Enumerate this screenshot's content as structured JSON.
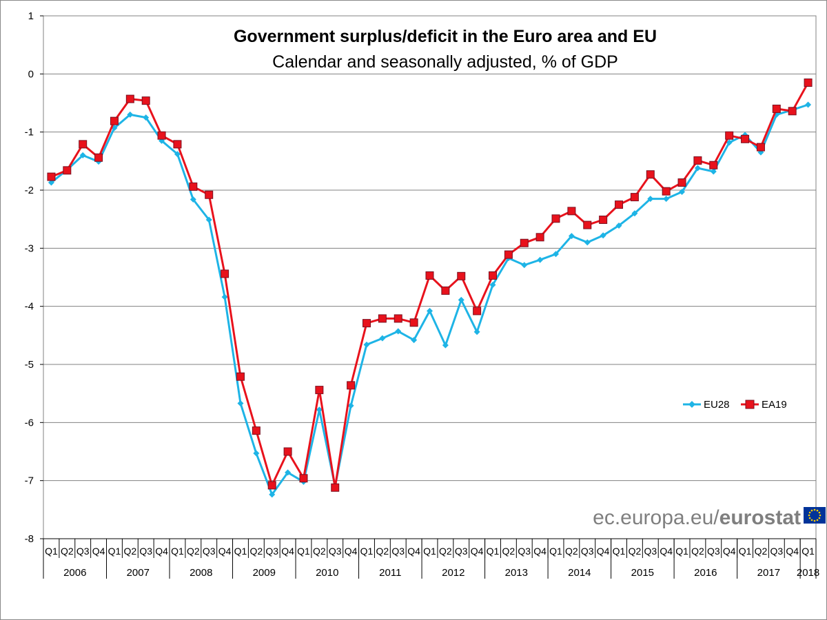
{
  "chart_data": {
    "type": "line",
    "title": "Government surplus/deficit in the Euro area and EU",
    "subtitle": "Calendar and seasonally adjusted, % of GDP",
    "ylim": [
      -8,
      1
    ],
    "yticks": [
      "1",
      "0",
      "-1",
      "-2",
      "-3",
      "-4",
      "-5",
      "-6",
      "-7",
      "-8"
    ],
    "grid": true,
    "legend_position": "right",
    "quarters": [
      "Q1",
      "Q2",
      "Q3",
      "Q4",
      "Q1",
      "Q2",
      "Q3",
      "Q4",
      "Q1",
      "Q2",
      "Q3",
      "Q4",
      "Q1",
      "Q2",
      "Q3",
      "Q4",
      "Q1",
      "Q2",
      "Q3",
      "Q4",
      "Q1",
      "Q2",
      "Q3",
      "Q4",
      "Q1",
      "Q2",
      "Q3",
      "Q4",
      "Q1",
      "Q2",
      "Q3",
      "Q4",
      "Q1",
      "Q2",
      "Q3",
      "Q4",
      "Q1",
      "Q2",
      "Q3",
      "Q4",
      "Q1",
      "Q2",
      "Q3",
      "Q4",
      "Q1",
      "Q2",
      "Q3",
      "Q4",
      "Q1"
    ],
    "years": [
      "2006",
      "2007",
      "2008",
      "2009",
      "2010",
      "2011",
      "2012",
      "2013",
      "2014",
      "2015",
      "2016",
      "2017",
      "2018"
    ],
    "series": [
      {
        "name": "EU28",
        "color": "#1eb4e6",
        "marker": "diamond",
        "values": [
          -1.87,
          -1.65,
          -1.4,
          -1.51,
          -0.93,
          -0.7,
          -0.75,
          -1.15,
          -1.38,
          -2.16,
          -2.51,
          -3.84,
          -5.67,
          -6.53,
          -7.24,
          -6.86,
          -7.02,
          -5.78,
          -7.1,
          -5.71,
          -4.66,
          -4.55,
          -4.43,
          -4.58,
          -4.08,
          -4.67,
          -3.89,
          -4.44,
          -3.63,
          -3.17,
          -3.29,
          -3.2,
          -3.1,
          -2.79,
          -2.9,
          -2.78,
          -2.61,
          -2.4,
          -2.15,
          -2.15,
          -2.03,
          -1.62,
          -1.68,
          -1.18,
          -1.05,
          -1.35,
          -0.7,
          -0.62,
          -0.53
        ]
      },
      {
        "name": "EA19",
        "color": "#e8121c",
        "marker": "square",
        "values": [
          -1.77,
          -1.66,
          -1.21,
          -1.44,
          -0.81,
          -0.43,
          -0.46,
          -1.06,
          -1.21,
          -1.94,
          -2.08,
          -3.44,
          -5.21,
          -6.14,
          -7.08,
          -6.5,
          -6.96,
          -5.44,
          -7.12,
          -5.36,
          -4.29,
          -4.21,
          -4.21,
          -4.28,
          -3.47,
          -3.73,
          -3.48,
          -4.08,
          -3.47,
          -3.11,
          -2.91,
          -2.81,
          -2.49,
          -2.36,
          -2.6,
          -2.51,
          -2.25,
          -2.12,
          -1.73,
          -2.02,
          -1.87,
          -1.49,
          -1.57,
          -1.06,
          -1.12,
          -1.26,
          -0.6,
          -0.64,
          -0.15
        ]
      }
    ]
  },
  "watermark": {
    "light": "ec.europa.eu/",
    "bold": "eurostat"
  },
  "colors": {
    "eu_blue": "#003399",
    "eu_gold": "#ffcc00",
    "grid": "#808080"
  }
}
